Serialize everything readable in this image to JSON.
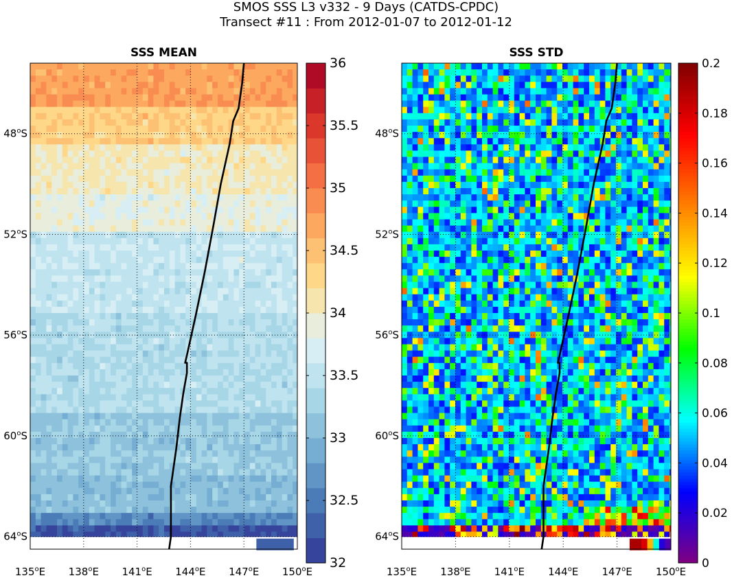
{
  "figure": {
    "title_line1": "SMOS SSS L3 v332 - 9 Days (CATDS-CPDC)",
    "title_line2": "Transect #11 : From 2012-01-07 to 2012-01-12"
  },
  "chart_data": [
    {
      "type": "heatmap",
      "title": "SSS MEAN",
      "xlabel": "",
      "ylabel": "",
      "x_ticks": [
        "135°E",
        "138°E",
        "141°E",
        "144°E",
        "147°E",
        "150°E"
      ],
      "x_tick_values": [
        135,
        138,
        141,
        144,
        147,
        150
      ],
      "y_ticks": [
        "48°S",
        "52°S",
        "56°S",
        "60°S",
        "64°S"
      ],
      "y_tick_values": [
        -48,
        -52,
        -56,
        -60,
        -64
      ],
      "xlim": [
        135,
        150
      ],
      "ylim": [
        -64.5,
        -45.2
      ],
      "grid": true,
      "colorbar": {
        "min": 32,
        "max": 36,
        "levels": 20,
        "ticks": [
          "32",
          "32.5",
          "33",
          "33.5",
          "34",
          "34.5",
          "35",
          "35.5",
          "36"
        ],
        "colormap": [
          "#313695",
          "#4575b4",
          "#74add1",
          "#abd9e9",
          "#e0f3f8",
          "#fee090",
          "#fdae61",
          "#f46d43",
          "#d73027",
          "#a50026"
        ]
      },
      "field_description_by_latitude": [
        {
          "lat_from": -45.2,
          "lat_to": -47.0,
          "mean": 34.75
        },
        {
          "lat_from": -47.0,
          "lat_to": -48.5,
          "mean": 34.4
        },
        {
          "lat_from": -48.5,
          "lat_to": -50.5,
          "mean": 34.05
        },
        {
          "lat_from": -50.5,
          "lat_to": -52.0,
          "mean": 33.85
        },
        {
          "lat_from": -52.0,
          "lat_to": -55.0,
          "mean": 33.55
        },
        {
          "lat_from": -55.0,
          "lat_to": -59.0,
          "mean": 33.4
        },
        {
          "lat_from": -59.0,
          "lat_to": -61.5,
          "mean": 33.2
        },
        {
          "lat_from": -61.5,
          "lat_to": -63.0,
          "mean": 33.05
        },
        {
          "lat_from": -63.0,
          "lat_to": -63.6,
          "mean": 32.6
        },
        {
          "lat_from": -63.6,
          "lat_to": -64.0,
          "mean": 32.2
        }
      ],
      "transect": {
        "lon": [
          147.0,
          146.9,
          146.7,
          146.4,
          146.2,
          145.7,
          145.3,
          144.8,
          144.3,
          143.8,
          143.7,
          143.8,
          143.8,
          143.6,
          143.4,
          143.2,
          143.0,
          142.9,
          142.9,
          142.9,
          142.8
        ],
        "lat": [
          -45.2,
          -46.0,
          -47.0,
          -47.5,
          -48.4,
          -50.0,
          -51.6,
          -53.5,
          -55.2,
          -56.8,
          -57.1,
          -57.1,
          -57.5,
          -58.3,
          -59.3,
          -60.5,
          -61.5,
          -62.0,
          -63.0,
          -64.0,
          -64.5
        ]
      }
    },
    {
      "type": "heatmap",
      "title": "SSS STD",
      "xlabel": "",
      "ylabel": "",
      "x_ticks": [
        "135°E",
        "138°E",
        "141°E",
        "144°E",
        "147°E",
        "150°E"
      ],
      "x_tick_values": [
        135,
        138,
        141,
        144,
        147,
        150
      ],
      "y_ticks": [
        "48°S",
        "52°S",
        "56°S",
        "60°S",
        "64°S"
      ],
      "y_tick_values": [
        -48,
        -52,
        -56,
        -60,
        -64
      ],
      "xlim": [
        135,
        150
      ],
      "ylim": [
        -64.5,
        -45.2
      ],
      "grid": true,
      "colorbar": {
        "min": 0,
        "max": 0.2,
        "levels": 200,
        "ticks": [
          "0",
          "0.02",
          "0.04",
          "0.06",
          "0.08",
          "0.1",
          "0.12",
          "0.14",
          "0.16",
          "0.18",
          "0.2"
        ],
        "colormap": [
          "#800080",
          "#0000ff",
          "#00ffff",
          "#00ff00",
          "#ffff00",
          "#ff8000",
          "#ff0000",
          "#800000"
        ]
      },
      "field_description": "predominantly 0.02-0.06 with scattered 0.08-0.14 cells; high values (up to 0.2) near 64°S",
      "transect": {
        "lon": [
          147.0,
          146.9,
          146.7,
          146.4,
          146.2,
          145.7,
          145.3,
          144.8,
          144.3,
          143.8,
          143.7,
          143.8,
          143.8,
          143.6,
          143.4,
          143.2,
          143.0,
          142.9,
          142.9,
          142.9,
          142.8
        ],
        "lat": [
          -45.2,
          -46.0,
          -47.0,
          -47.5,
          -48.4,
          -50.0,
          -51.6,
          -53.5,
          -55.2,
          -56.8,
          -57.1,
          -57.1,
          -57.5,
          -58.3,
          -59.3,
          -60.5,
          -61.5,
          -62.0,
          -63.0,
          -64.0,
          -64.5
        ]
      }
    }
  ]
}
